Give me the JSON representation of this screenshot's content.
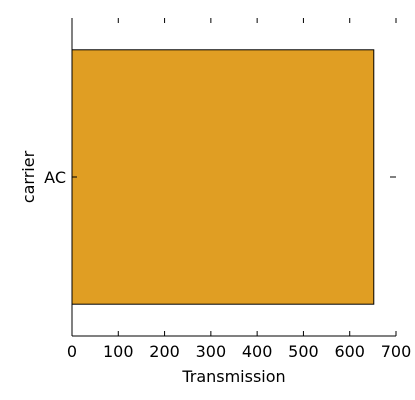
{
  "chart_data": {
    "type": "bar",
    "orientation": "horizontal",
    "categories": [
      "AC"
    ],
    "values": [
      652
    ],
    "xlabel": "Transmission",
    "ylabel": "carrier",
    "xlim": [
      0,
      700
    ],
    "xticks": [
      0,
      100,
      200,
      300,
      400,
      500,
      600,
      700
    ],
    "grid": false,
    "bar_color": "#E09E23",
    "edge_color": "#000000"
  }
}
